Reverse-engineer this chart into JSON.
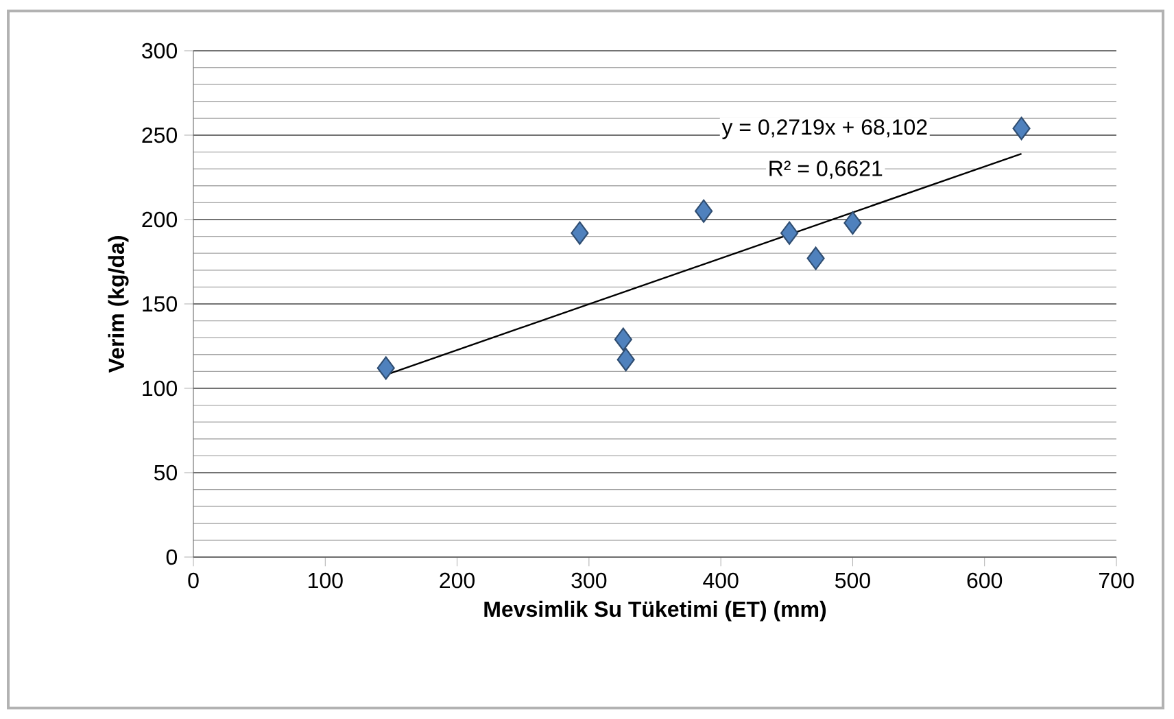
{
  "chart_data": {
    "type": "scatter",
    "xlabel": "Mevsimlik Su Tüketimi (ET) (mm)",
    "ylabel": "Verim (kg/da)",
    "series": [
      {
        "color": "#4f81bd",
        "marker": "diamond",
        "x": [
          146,
          293,
          326,
          328,
          387,
          452,
          472,
          500,
          628
        ],
        "values": [
          112,
          192,
          129,
          117,
          205,
          192,
          177,
          198,
          254
        ]
      },
      {
        "type": "line",
        "color": "#000000",
        "x": [
          146,
          628
        ],
        "values": [
          108,
          239
        ]
      }
    ],
    "annotations": [
      "y = 0,2719x + 68,102",
      "R² = 0,6621"
    ],
    "xlim": [
      0,
      700
    ],
    "xticks": [
      0,
      100,
      200,
      300,
      400,
      500,
      600,
      700
    ],
    "ylim": [
      0,
      300
    ],
    "yticks": [
      0,
      50,
      100,
      150,
      200,
      250,
      300
    ],
    "grid": "y"
  }
}
